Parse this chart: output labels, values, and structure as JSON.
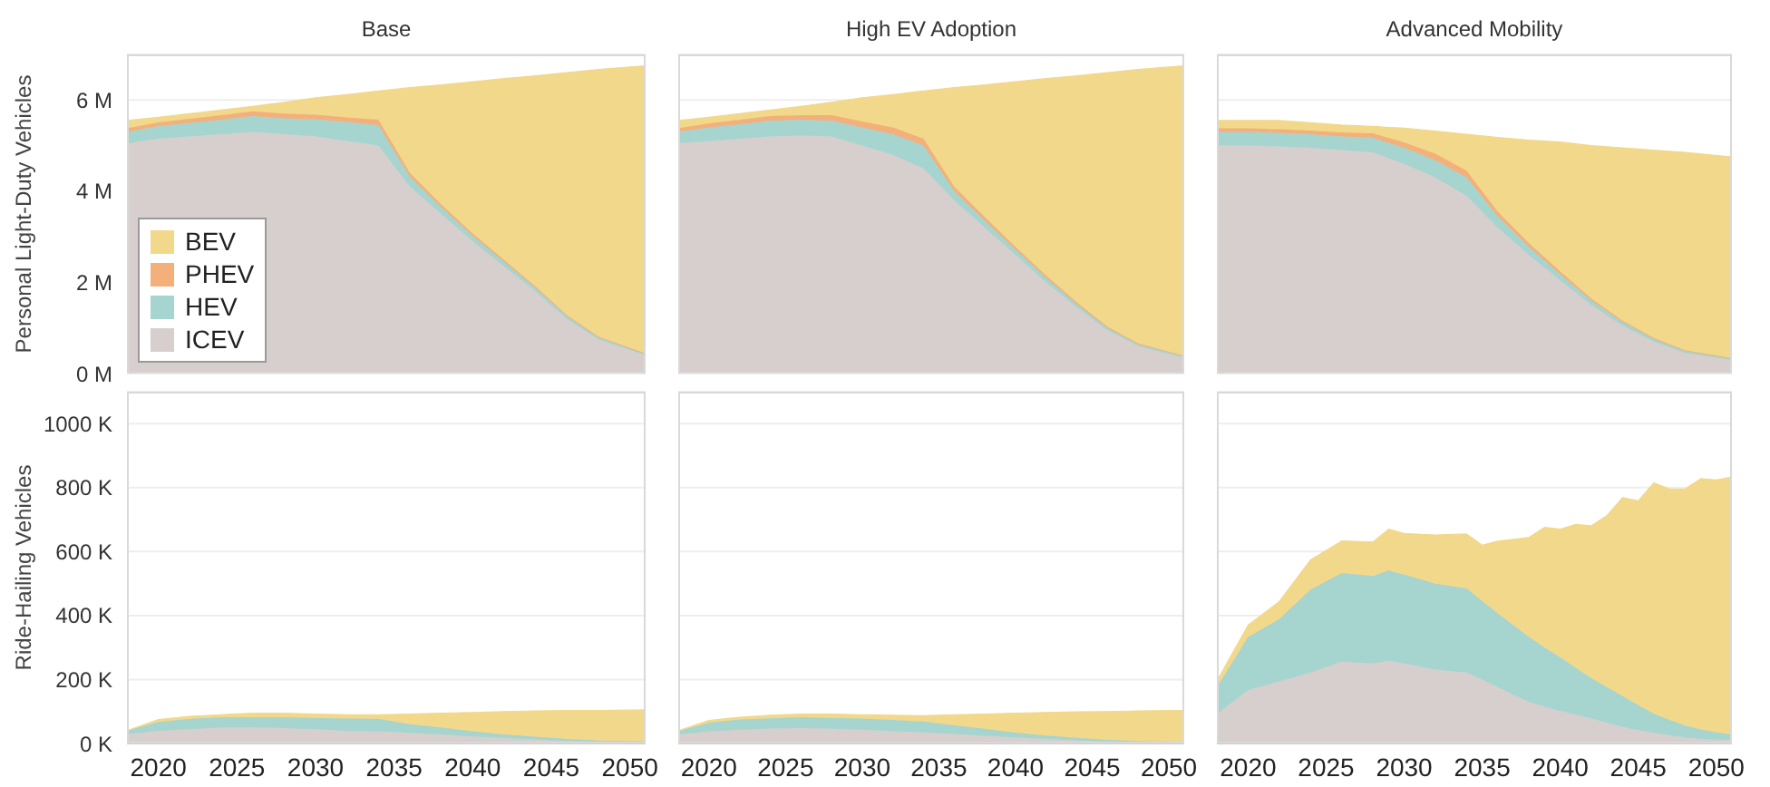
{
  "chart_data": [
    {
      "type": "area",
      "stacked": true,
      "title": "Base",
      "ylabel": "Personal Light-Duty Vehicles",
      "legend": "bottom left",
      "grid": "y",
      "tick_labels": "y",
      "x": [
        2018,
        2020,
        2022,
        2024,
        2026,
        2028,
        2030,
        2032,
        2034,
        2036,
        2038,
        2040,
        2042,
        2044,
        2046,
        2048,
        2051
      ],
      "xlim": [
        2018,
        2051
      ],
      "ylim": [
        0,
        7
      ],
      "yticks": [
        {
          "value": 0,
          "label": "0 M"
        },
        {
          "value": 2,
          "label": "2 M"
        },
        {
          "value": 4,
          "label": "4 M"
        },
        {
          "value": 6,
          "label": "6 M"
        }
      ],
      "series": [
        {
          "name": "ICEV",
          "color": "#d6cfcd",
          "values": [
            5.05,
            5.15,
            5.2,
            5.25,
            5.3,
            5.25,
            5.2,
            5.1,
            5.0,
            4.1,
            3.5,
            2.9,
            2.35,
            1.8,
            1.2,
            0.75,
            0.4
          ]
        },
        {
          "name": "HEV",
          "color": "#a6d4cf",
          "values": [
            0.25,
            0.28,
            0.3,
            0.32,
            0.35,
            0.35,
            0.38,
            0.42,
            0.45,
            0.22,
            0.15,
            0.12,
            0.1,
            0.08,
            0.06,
            0.04,
            0.03
          ]
        },
        {
          "name": "PHEV",
          "color": "#f4b07a",
          "values": [
            0.08,
            0.08,
            0.09,
            0.1,
            0.1,
            0.1,
            0.1,
            0.1,
            0.12,
            0.08,
            0.06,
            0.05,
            0.04,
            0.03,
            0.02,
            0.02,
            0.01
          ]
        },
        {
          "name": "BEV",
          "color": "#f2d88a",
          "values": [
            0.17,
            0.11,
            0.11,
            0.11,
            0.11,
            0.25,
            0.37,
            0.5,
            0.63,
            1.87,
            2.62,
            3.33,
            3.98,
            4.62,
            5.32,
            5.86,
            6.31
          ]
        }
      ]
    },
    {
      "type": "area",
      "stacked": true,
      "title": "High EV Adoption",
      "legend": false,
      "grid": "y",
      "tick_labels": false,
      "x": [
        2018,
        2020,
        2022,
        2024,
        2026,
        2028,
        2030,
        2032,
        2034,
        2036,
        2038,
        2040,
        2042,
        2044,
        2046,
        2048,
        2051
      ],
      "xlim": [
        2018,
        2051
      ],
      "ylim": [
        0,
        7
      ],
      "yticks": [
        {
          "value": 0,
          "label": null
        },
        {
          "value": 2,
          "label": null
        },
        {
          "value": 4,
          "label": null
        },
        {
          "value": 6,
          "label": null
        }
      ],
      "series": [
        {
          "color": "#d6cfcd",
          "values": [
            5.05,
            5.1,
            5.15,
            5.2,
            5.22,
            5.2,
            5.0,
            4.8,
            4.5,
            3.8,
            3.2,
            2.6,
            2.0,
            1.45,
            0.95,
            0.6,
            0.35
          ]
        },
        {
          "color": "#a6d4cf",
          "values": [
            0.25,
            0.3,
            0.32,
            0.35,
            0.35,
            0.35,
            0.4,
            0.45,
            0.5,
            0.2,
            0.15,
            0.12,
            0.1,
            0.07,
            0.05,
            0.04,
            0.03
          ]
        },
        {
          "color": "#f4b07a",
          "values": [
            0.08,
            0.09,
            0.1,
            0.1,
            0.1,
            0.12,
            0.13,
            0.15,
            0.15,
            0.1,
            0.08,
            0.06,
            0.05,
            0.04,
            0.03,
            0.02,
            0.01
          ]
        },
        {
          "color": "#f2d88a",
          "values": [
            0.17,
            0.13,
            0.13,
            0.13,
            0.19,
            0.28,
            0.52,
            0.72,
            1.05,
            2.17,
            2.9,
            3.62,
            4.32,
            4.97,
            5.57,
            6.01,
            6.36
          ]
        }
      ]
    },
    {
      "type": "area",
      "stacked": true,
      "title": "Advanced Mobility",
      "legend": false,
      "grid": "y",
      "tick_labels": false,
      "x": [
        2018,
        2020,
        2022,
        2024,
        2026,
        2028,
        2030,
        2032,
        2034,
        2036,
        2038,
        2040,
        2042,
        2044,
        2046,
        2048,
        2051
      ],
      "xlim": [
        2018,
        2051
      ],
      "ylim": [
        0,
        7
      ],
      "yticks": [
        {
          "value": 0,
          "label": null
        },
        {
          "value": 2,
          "label": null
        },
        {
          "value": 4,
          "label": null
        },
        {
          "value": 6,
          "label": null
        }
      ],
      "series": [
        {
          "color": "#d6cfcd",
          "values": [
            5.0,
            5.0,
            4.98,
            4.95,
            4.9,
            4.85,
            4.6,
            4.3,
            3.9,
            3.2,
            2.6,
            2.05,
            1.5,
            1.05,
            0.7,
            0.45,
            0.3
          ]
        },
        {
          "color": "#a6d4cf",
          "values": [
            0.3,
            0.3,
            0.3,
            0.3,
            0.3,
            0.32,
            0.35,
            0.38,
            0.4,
            0.25,
            0.18,
            0.13,
            0.1,
            0.08,
            0.06,
            0.04,
            0.03
          ]
        },
        {
          "color": "#f4b07a",
          "values": [
            0.08,
            0.08,
            0.08,
            0.08,
            0.09,
            0.1,
            0.12,
            0.14,
            0.15,
            0.1,
            0.08,
            0.06,
            0.04,
            0.03,
            0.02,
            0.02,
            0.01
          ]
        },
        {
          "color": "#f2d88a",
          "values": [
            0.17,
            0.17,
            0.19,
            0.17,
            0.16,
            0.15,
            0.31,
            0.5,
            0.8,
            1.63,
            2.26,
            2.84,
            3.36,
            3.79,
            4.12,
            4.34,
            4.41
          ]
        }
      ]
    },
    {
      "type": "area",
      "stacked": true,
      "ylabel": "Ride-Hailing Vehicles",
      "legend": false,
      "grid": "y",
      "x": [
        2018,
        2020,
        2022,
        2024,
        2026,
        2028,
        2030,
        2032,
        2034,
        2036,
        2038,
        2040,
        2042,
        2044,
        2046,
        2048,
        2051
      ],
      "xlim": [
        2018,
        2051
      ],
      "xticks": [
        2020,
        2025,
        2030,
        2035,
        2040,
        2045,
        2050
      ],
      "ylim": [
        0,
        1100
      ],
      "yticks": [
        {
          "value": 0,
          "label": "0 K"
        },
        {
          "value": 200,
          "label": "200 K"
        },
        {
          "value": 400,
          "label": "400 K"
        },
        {
          "value": 600,
          "label": "600 K"
        },
        {
          "value": 800,
          "label": "800 K"
        },
        {
          "value": 1000,
          "label": "1000 K"
        }
      ],
      "series": [
        {
          "color": "#d6cfcd",
          "values": [
            30,
            40,
            45,
            50,
            50,
            48,
            45,
            40,
            38,
            33,
            28,
            22,
            17,
            12,
            8,
            5,
            4
          ]
        },
        {
          "color": "#a6d4cf",
          "values": [
            10,
            27,
            32,
            32,
            32,
            34,
            35,
            38,
            39,
            27,
            22,
            16,
            11,
            9,
            6,
            4,
            3
          ]
        },
        {
          "color": "#f2d88a",
          "values": [
            0,
            8,
            8,
            8,
            13,
            13,
            12,
            12,
            13,
            32,
            45,
            59,
            72,
            81,
            89,
            94,
            98
          ]
        }
      ]
    },
    {
      "type": "area",
      "stacked": true,
      "legend": false,
      "grid": "y",
      "tick_labels": "x",
      "x": [
        2018,
        2020,
        2022,
        2024,
        2026,
        2028,
        2030,
        2032,
        2034,
        2036,
        2038,
        2040,
        2042,
        2044,
        2046,
        2048,
        2051
      ],
      "xlim": [
        2018,
        2051
      ],
      "xticks": [
        2020,
        2025,
        2030,
        2035,
        2040,
        2045,
        2050
      ],
      "ylim": [
        0,
        1100
      ],
      "yticks": [
        {
          "value": 0,
          "label": null
        },
        {
          "value": 200,
          "label": null
        },
        {
          "value": 400,
          "label": null
        },
        {
          "value": 600,
          "label": null
        },
        {
          "value": 800,
          "label": null
        },
        {
          "value": 1000,
          "label": null
        }
      ],
      "series": [
        {
          "color": "#d6cfcd",
          "values": [
            28,
            38,
            43,
            47,
            48,
            46,
            43,
            38,
            35,
            30,
            24,
            19,
            14,
            10,
            6,
            4,
            3
          ]
        },
        {
          "color": "#a6d4cf",
          "values": [
            10,
            27,
            32,
            32,
            34,
            34,
            35,
            36,
            34,
            27,
            22,
            15,
            11,
            8,
            5,
            4,
            3
          ]
        },
        {
          "color": "#f2d88a",
          "values": [
            2,
            7,
            7,
            9,
            10,
            12,
            12,
            14,
            18,
            33,
            46,
            61,
            72,
            81,
            89,
            94,
            97
          ]
        }
      ]
    },
    {
      "type": "area",
      "stacked": true,
      "legend": false,
      "grid": "y",
      "tick_labels": "x",
      "x": [
        2018,
        2020,
        2022,
        2024,
        2026,
        2028,
        2029,
        2030,
        2032,
        2034,
        2035,
        2036,
        2038,
        2039,
        2040,
        2041,
        2042,
        2043,
        2044,
        2045,
        2046,
        2047,
        2048,
        2049,
        2050,
        2051
      ],
      "xlim": [
        2018,
        2051
      ],
      "xticks": [
        2020,
        2025,
        2030,
        2035,
        2040,
        2045,
        2050
      ],
      "ylim": [
        0,
        1100
      ],
      "yticks": [
        {
          "value": 0,
          "label": null
        },
        {
          "value": 200,
          "label": null
        },
        {
          "value": 400,
          "label": null
        },
        {
          "value": 600,
          "label": null
        },
        {
          "value": 800,
          "label": null
        },
        {
          "value": 1000,
          "label": null
        }
      ],
      "series": [
        {
          "color": "#d6cfcd",
          "values": [
            93,
            167,
            194,
            222,
            256,
            250,
            259,
            250,
            231,
            222,
            200,
            176,
            130,
            115,
            102,
            90,
            78,
            65,
            52,
            42,
            33,
            26,
            19,
            15,
            12,
            11
          ]
        },
        {
          "color": "#a6d4cf",
          "values": [
            83,
            166,
            195,
            259,
            277,
            274,
            282,
            278,
            269,
            263,
            245,
            231,
            203,
            185,
            167,
            146,
            126,
            111,
            96,
            78,
            60,
            48,
            37,
            29,
            23,
            17
          ]
        },
        {
          "color": "#f2d88a",
          "values": [
            19,
            37,
            55,
            93,
            100,
            106,
            129,
            129,
            152,
            170,
            175,
            226,
            311,
            376,
            401,
            449,
            477,
            537,
            621,
            639,
            722,
            722,
            740,
            784,
            789,
            805
          ]
        }
      ]
    }
  ]
}
